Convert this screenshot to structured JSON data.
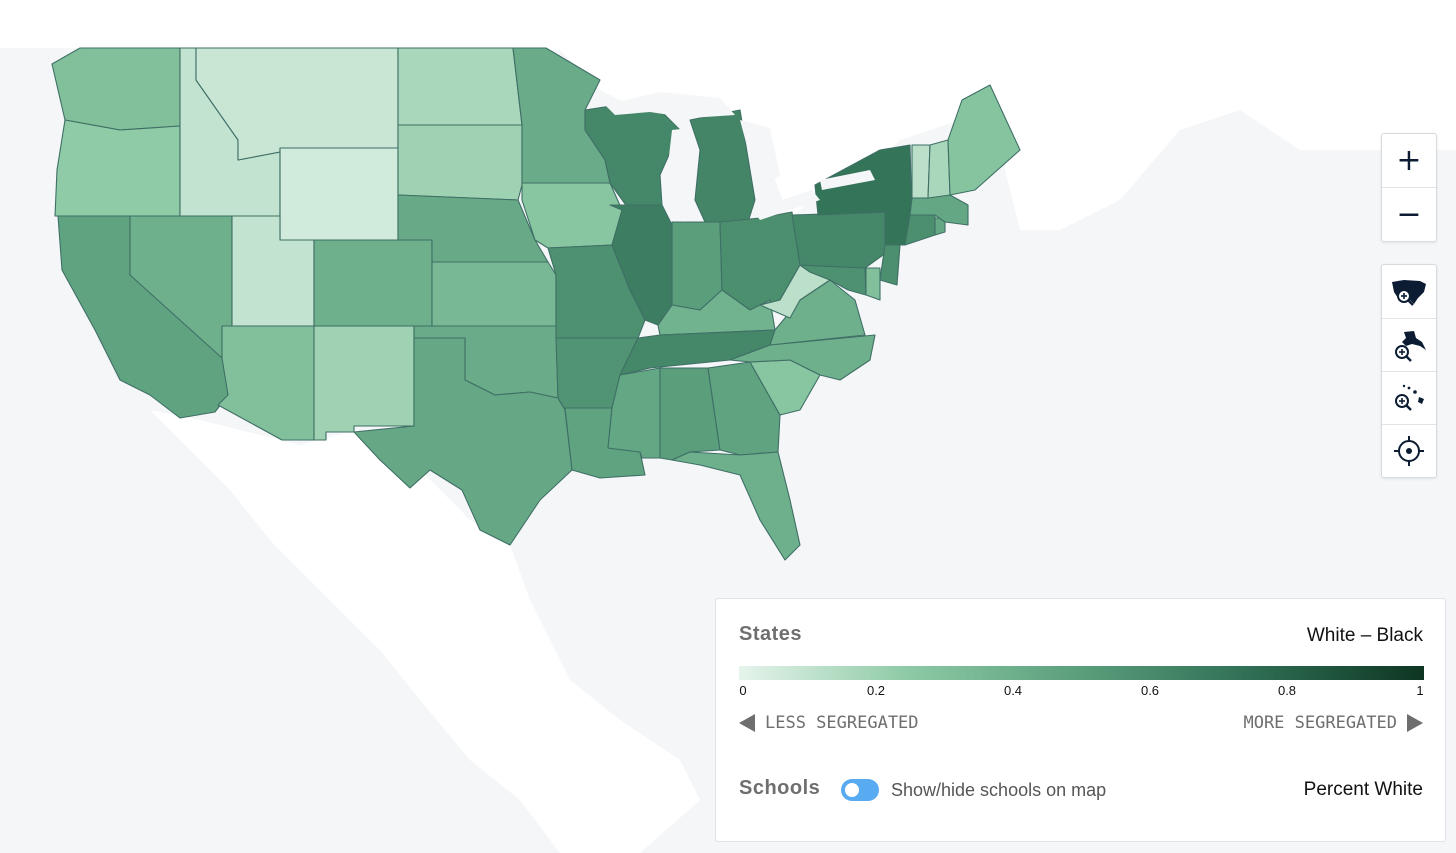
{
  "colors": {
    "ocean": "#f4f6f8",
    "land": "#ffffff",
    "state_border": "#3f6f66",
    "scale_low": "#e6f4ec",
    "scale_high": "#0d3522",
    "toggle_on": "#58aaf1"
  },
  "map_controls": {
    "zoom_in": "+",
    "zoom_out": "−",
    "view_icons": [
      "us-mainland-zoom-icon",
      "alaska-zoom-icon",
      "hawaii-zoom-icon",
      "locate-icon"
    ]
  },
  "legend": {
    "title": "States",
    "metric": "White – Black",
    "scale_ticks": [
      "0",
      "0.2",
      "0.4",
      "0.6",
      "0.8",
      "1"
    ],
    "less_label": "LESS SEGREGATED",
    "more_label": "MORE SEGREGATED",
    "schools_title": "Schools",
    "schools_toggle_label": "Show/hide schools on map",
    "schools_toggle_on": true,
    "schools_layer": "Percent White"
  },
  "states": [
    {
      "name": "Washington",
      "value": 0.3
    },
    {
      "name": "Oregon",
      "value": 0.24
    },
    {
      "name": "California",
      "value": 0.47
    },
    {
      "name": "Nevada",
      "value": 0.4
    },
    {
      "name": "Idaho",
      "value": 0.1
    },
    {
      "name": "Montana",
      "value": 0.08
    },
    {
      "name": "Wyoming",
      "value": 0.06
    },
    {
      "name": "Utah",
      "value": 0.1
    },
    {
      "name": "Arizona",
      "value": 0.3
    },
    {
      "name": "Colorado",
      "value": 0.4
    },
    {
      "name": "New Mexico",
      "value": 0.2
    },
    {
      "name": "North Dakota",
      "value": 0.17
    },
    {
      "name": "South Dakota",
      "value": 0.2
    },
    {
      "name": "Nebraska",
      "value": 0.43
    },
    {
      "name": "Kansas",
      "value": 0.35
    },
    {
      "name": "Oklahoma",
      "value": 0.42
    },
    {
      "name": "Texas",
      "value": 0.44
    },
    {
      "name": "Minnesota",
      "value": 0.42
    },
    {
      "name": "Iowa",
      "value": 0.27
    },
    {
      "name": "Missouri",
      "value": 0.57
    },
    {
      "name": "Arkansas",
      "value": 0.55
    },
    {
      "name": "Louisiana",
      "value": 0.47
    },
    {
      "name": "Wisconsin",
      "value": 0.62
    },
    {
      "name": "Illinois",
      "value": 0.67
    },
    {
      "name": "Michigan",
      "value": 0.63
    },
    {
      "name": "Indiana",
      "value": 0.5
    },
    {
      "name": "Ohio",
      "value": 0.58
    },
    {
      "name": "Kentucky",
      "value": 0.38
    },
    {
      "name": "Tennessee",
      "value": 0.62
    },
    {
      "name": "Mississippi",
      "value": 0.45
    },
    {
      "name": "Alabama",
      "value": 0.5
    },
    {
      "name": "Georgia",
      "value": 0.47
    },
    {
      "name": "Florida",
      "value": 0.4
    },
    {
      "name": "South Carolina",
      "value": 0.27
    },
    {
      "name": "North Carolina",
      "value": 0.4
    },
    {
      "name": "Virginia",
      "value": 0.4
    },
    {
      "name": "West Virginia",
      "value": 0.12
    },
    {
      "name": "Maryland",
      "value": 0.57
    },
    {
      "name": "Delaware",
      "value": 0.3
    },
    {
      "name": "Pennsylvania",
      "value": 0.62
    },
    {
      "name": "New Jersey",
      "value": 0.58
    },
    {
      "name": "New York",
      "value": 0.72
    },
    {
      "name": "Connecticut",
      "value": 0.58
    },
    {
      "name": "Rhode Island",
      "value": 0.45
    },
    {
      "name": "Massachusetts",
      "value": 0.45
    },
    {
      "name": "Vermont",
      "value": 0.12
    },
    {
      "name": "New Hampshire",
      "value": 0.17
    },
    {
      "name": "Maine",
      "value": 0.28
    }
  ]
}
